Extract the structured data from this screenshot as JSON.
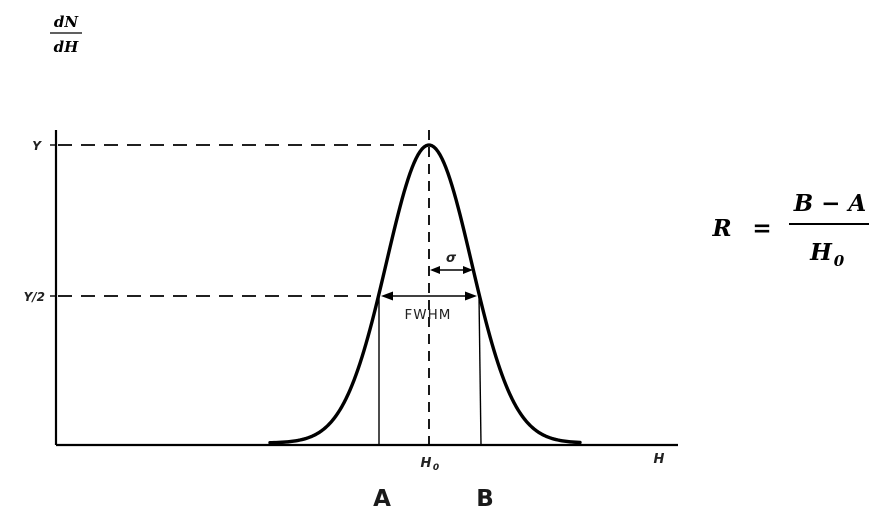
{
  "ylabel": {
    "numerator": "dN",
    "denominator": "dH"
  },
  "y_ticks": {
    "peak": "Y",
    "half": "Y/2"
  },
  "x_axis": {
    "label": "H",
    "center_main": "H",
    "center_sub": "0"
  },
  "annotations": {
    "sigma": "σ",
    "fwhm": "FWHM"
  },
  "points": {
    "a": "A",
    "b": "B"
  },
  "formula": {
    "lhs": "R",
    "equals": "=",
    "numerator": "B − A",
    "denominator_main": "H",
    "denominator_sub": "0"
  }
}
